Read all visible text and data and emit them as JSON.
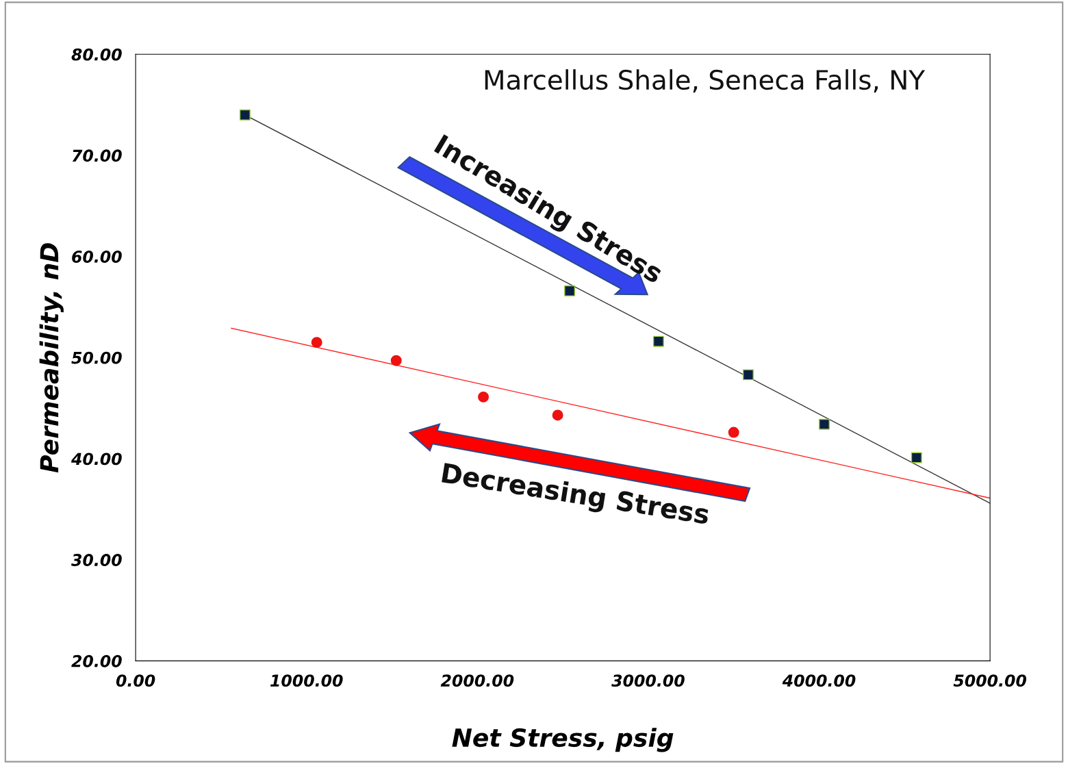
{
  "chart_data": {
    "type": "scatter",
    "xlabel": "Net Stress, psig",
    "ylabel": "Permeability, nD",
    "xlim": [
      0,
      5000
    ],
    "ylim": [
      20,
      80
    ],
    "xticks": [
      {
        "value": 0,
        "label": "0.00"
      },
      {
        "value": 1000,
        "label": "1000.00"
      },
      {
        "value": 2000,
        "label": "2000.00"
      },
      {
        "value": 3000,
        "label": "3000.00"
      },
      {
        "value": 4000,
        "label": "4000.00"
      },
      {
        "value": 5000,
        "label": "5000.00"
      }
    ],
    "yticks": [
      {
        "value": 20,
        "label": "20.00"
      },
      {
        "value": 30,
        "label": "30.00"
      },
      {
        "value": 40,
        "label": "40.00"
      },
      {
        "value": 50,
        "label": "50.00"
      },
      {
        "value": 60,
        "label": "60.00"
      },
      {
        "value": 70,
        "label": "70.00"
      },
      {
        "value": 80,
        "label": "80.00"
      }
    ],
    "grid": false,
    "legend": false,
    "annotations": [
      "Marcellus Shale, Seneca Falls, NY",
      "Increasing Stress",
      "Decreasing Stress"
    ],
    "series": [
      {
        "marker": "square",
        "color": "#0a1f44",
        "x": [
          640,
          2540,
          3060,
          3585,
          4030,
          4570
        ],
        "values": [
          74.0,
          56.6,
          51.6,
          48.3,
          43.4,
          40.1
        ]
      },
      {
        "marker": "circle",
        "color": "#ee1111",
        "x": [
          1060,
          1525,
          2035,
          2470,
          3500
        ],
        "values": [
          51.5,
          49.7,
          46.1,
          44.3,
          42.6
        ]
      },
      {
        "type": "line",
        "marker": "none",
        "color": "#333333",
        "x": [
          640,
          5000
        ],
        "values": [
          74.0,
          35.6
        ]
      },
      {
        "type": "line",
        "marker": "none",
        "color": "#ff2020",
        "x": [
          560,
          5000
        ],
        "values": [
          52.9,
          36.1
        ]
      }
    ]
  }
}
